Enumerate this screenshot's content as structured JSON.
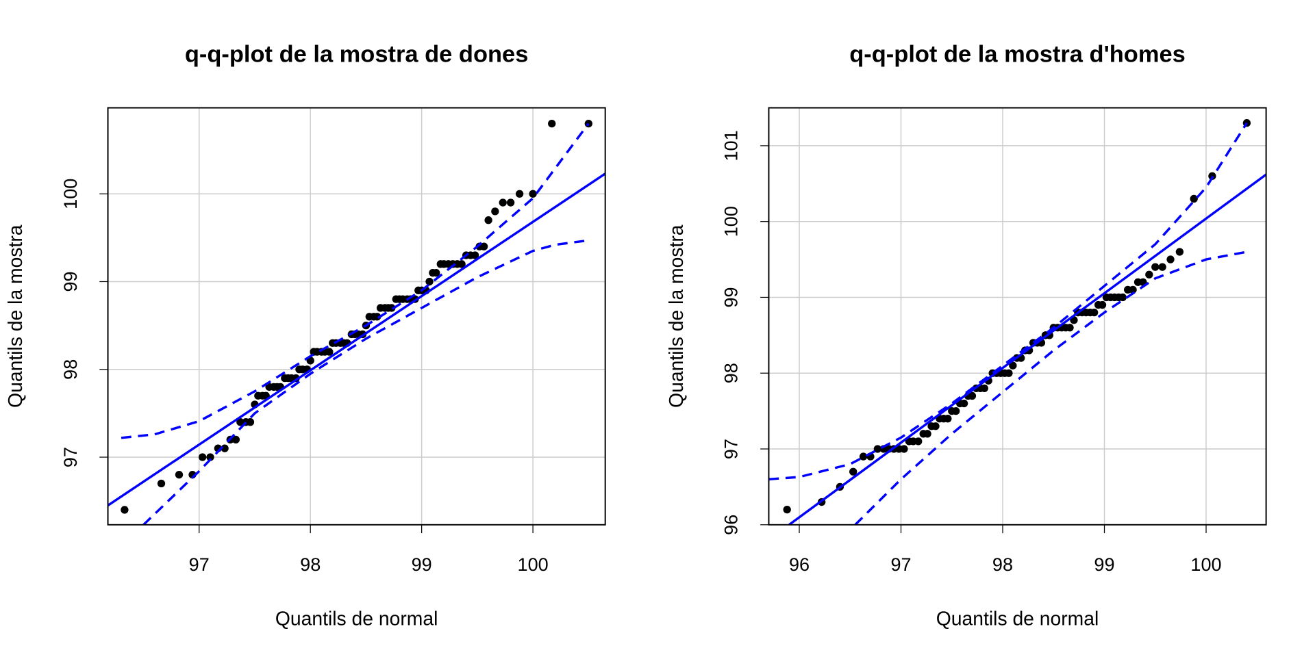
{
  "chart_data": [
    {
      "type": "scatter",
      "title": "q-q-plot de la mostra de dones",
      "x_label": "Quantils de normal",
      "y_label": "Quantils de la mostra",
      "xlim": [
        96.18,
        100.65
      ],
      "ylim": [
        96.23,
        100.98
      ],
      "xticks": [
        97,
        98,
        99,
        100
      ],
      "yticks": [
        97,
        98,
        99,
        100
      ],
      "grid": true,
      "series": [
        {
          "mode": "markers",
          "color": "#000000",
          "x": [
            96.33,
            96.66,
            96.82,
            96.94,
            97.03,
            97.1,
            97.17,
            97.23,
            97.28,
            97.33,
            97.37,
            97.42,
            97.46,
            97.5,
            97.53,
            97.57,
            97.6,
            97.63,
            97.67,
            97.7,
            97.73,
            97.77,
            97.8,
            97.83,
            97.87,
            97.9,
            97.93,
            97.97,
            98.0,
            98.03,
            98.06,
            98.1,
            98.13,
            98.17,
            98.2,
            98.23,
            98.27,
            98.3,
            98.33,
            98.37,
            98.4,
            98.43,
            98.47,
            98.5,
            98.53,
            98.57,
            98.6,
            98.63,
            98.67,
            98.7,
            98.73,
            98.77,
            98.8,
            98.83,
            98.87,
            98.9,
            98.94,
            98.97,
            99.0,
            99.04,
            99.07,
            99.1,
            99.13,
            99.17,
            99.2,
            99.24,
            99.28,
            99.32,
            99.36,
            99.4,
            99.44,
            99.48,
            99.52,
            99.56,
            99.6,
            99.66,
            99.73,
            99.8,
            99.88,
            100.0,
            100.17,
            100.5
          ],
          "y": [
            96.4,
            96.7,
            96.8,
            96.8,
            97.0,
            97.0,
            97.1,
            97.1,
            97.2,
            97.2,
            97.4,
            97.4,
            97.4,
            97.6,
            97.7,
            97.7,
            97.7,
            97.8,
            97.8,
            97.8,
            97.8,
            97.9,
            97.9,
            97.9,
            97.9,
            98.0,
            98.0,
            98.0,
            98.1,
            98.2,
            98.2,
            98.2,
            98.2,
            98.2,
            98.3,
            98.3,
            98.3,
            98.3,
            98.3,
            98.4,
            98.4,
            98.4,
            98.4,
            98.5,
            98.6,
            98.6,
            98.6,
            98.7,
            98.7,
            98.7,
            98.7,
            98.8,
            98.8,
            98.8,
            98.8,
            98.8,
            98.8,
            98.9,
            98.9,
            98.9,
            99.0,
            99.1,
            99.1,
            99.2,
            99.2,
            99.2,
            99.2,
            99.2,
            99.2,
            99.3,
            99.3,
            99.3,
            99.4,
            99.4,
            99.7,
            99.8,
            99.9,
            99.9,
            100.0,
            100.0,
            100.8,
            100.8
          ]
        },
        {
          "mode": "line",
          "color": "#0000ff",
          "dashed": false,
          "x": [
            96.18,
            100.65
          ],
          "y": [
            96.45,
            100.23
          ]
        },
        {
          "mode": "line",
          "color": "#0000ff",
          "dashed": true,
          "x": [
            96.3,
            96.6,
            97.0,
            97.5,
            98.0,
            98.5,
            99.0,
            99.5,
            100.0,
            100.5
          ],
          "y": [
            97.22,
            97.26,
            97.41,
            97.75,
            98.15,
            98.5,
            98.9,
            99.4,
            99.95,
            100.8
          ]
        },
        {
          "mode": "line",
          "color": "#0000ff",
          "dashed": true,
          "x": [
            96.5,
            97.0,
            97.5,
            98.0,
            98.5,
            99.0,
            99.5,
            100.0,
            100.2,
            100.5
          ],
          "y": [
            96.23,
            96.84,
            97.5,
            97.95,
            98.35,
            98.7,
            99.05,
            99.35,
            99.42,
            99.47
          ]
        }
      ]
    },
    {
      "type": "scatter",
      "title": "q-q-plot de la mostra d'homes",
      "x_label": "Quantils de normal",
      "y_label": "Quantils de la mostra",
      "xlim": [
        95.7,
        100.59
      ],
      "ylim": [
        96.0,
        101.5
      ],
      "xticks": [
        96,
        97,
        98,
        99,
        100
      ],
      "yticks": [
        96,
        97,
        98,
        99,
        100,
        101
      ],
      "grid": true,
      "series": [
        {
          "mode": "markers",
          "color": "#000000",
          "x": [
            95.88,
            96.22,
            96.4,
            96.53,
            96.63,
            96.7,
            96.77,
            96.83,
            96.88,
            96.93,
            96.98,
            97.03,
            97.08,
            97.12,
            97.17,
            97.22,
            97.26,
            97.3,
            97.34,
            97.38,
            97.42,
            97.46,
            97.5,
            97.54,
            97.58,
            97.62,
            97.66,
            97.7,
            97.74,
            97.78,
            97.82,
            97.86,
            97.9,
            97.94,
            97.98,
            98.02,
            98.06,
            98.1,
            98.14,
            98.18,
            98.22,
            98.26,
            98.3,
            98.34,
            98.38,
            98.42,
            98.46,
            98.5,
            98.54,
            98.58,
            98.62,
            98.66,
            98.7,
            98.74,
            98.78,
            98.82,
            98.86,
            98.9,
            98.94,
            98.98,
            99.02,
            99.06,
            99.1,
            99.14,
            99.18,
            99.23,
            99.28,
            99.33,
            99.38,
            99.44,
            99.5,
            99.57,
            99.65,
            99.74,
            99.88,
            100.06,
            100.4
          ],
          "y": [
            96.2,
            96.3,
            96.5,
            96.7,
            96.9,
            96.9,
            97.0,
            97.0,
            97.0,
            97.0,
            97.0,
            97.0,
            97.1,
            97.1,
            97.1,
            97.2,
            97.2,
            97.3,
            97.3,
            97.4,
            97.4,
            97.4,
            97.5,
            97.5,
            97.6,
            97.6,
            97.7,
            97.7,
            97.8,
            97.8,
            97.8,
            97.9,
            98.0,
            98.0,
            98.0,
            98.0,
            98.0,
            98.1,
            98.2,
            98.2,
            98.3,
            98.3,
            98.4,
            98.4,
            98.4,
            98.5,
            98.5,
            98.6,
            98.6,
            98.6,
            98.6,
            98.6,
            98.7,
            98.8,
            98.8,
            98.8,
            98.8,
            98.8,
            98.9,
            98.9,
            99.0,
            99.0,
            99.0,
            99.0,
            99.0,
            99.1,
            99.1,
            99.2,
            99.2,
            99.3,
            99.4,
            99.4,
            99.5,
            99.6,
            100.3,
            100.6,
            101.3
          ]
        },
        {
          "mode": "line",
          "color": "#0000ff",
          "dashed": false,
          "x": [
            95.9,
            100.59
          ],
          "y": [
            96.0,
            100.62
          ]
        },
        {
          "mode": "line",
          "color": "#0000ff",
          "dashed": true,
          "x": [
            95.7,
            96.0,
            96.5,
            97.0,
            97.5,
            98.0,
            98.5,
            99.0,
            99.5,
            100.0,
            100.4
          ],
          "y": [
            96.6,
            96.63,
            96.8,
            97.15,
            97.6,
            98.1,
            98.6,
            99.15,
            99.7,
            100.45,
            101.3
          ]
        },
        {
          "mode": "line",
          "color": "#0000ff",
          "dashed": true,
          "x": [
            96.55,
            97.0,
            97.5,
            98.0,
            98.5,
            99.0,
            99.5,
            100.0,
            100.4
          ],
          "y": [
            96.0,
            96.6,
            97.2,
            97.75,
            98.3,
            98.8,
            99.25,
            99.5,
            99.6
          ]
        }
      ]
    }
  ]
}
